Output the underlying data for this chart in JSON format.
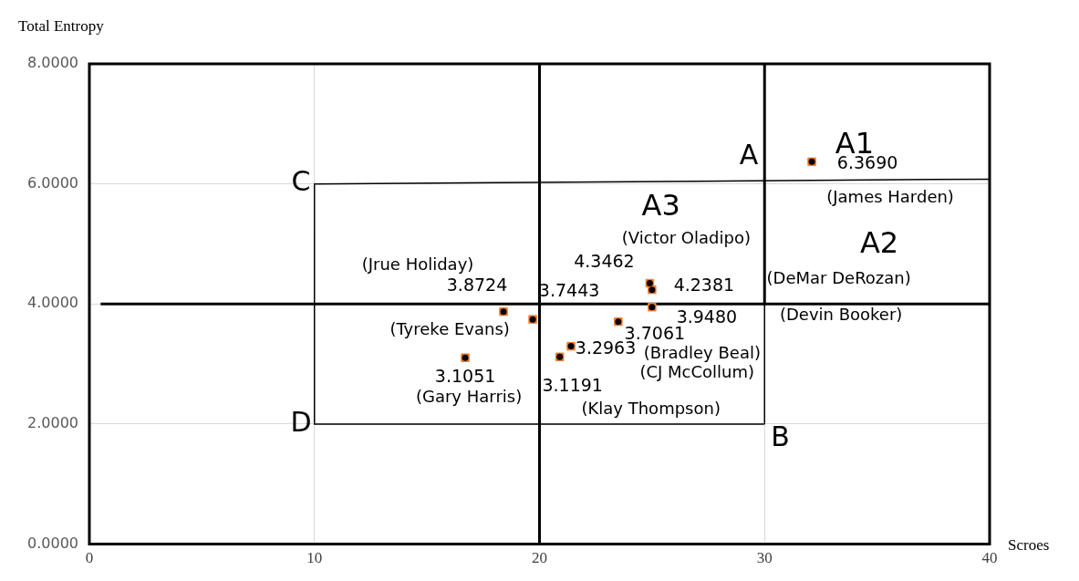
{
  "chart_data": {
    "type": "scatter",
    "xlabel": "Scroes",
    "ylabel": "Total Entropy",
    "xlim": [
      0,
      40
    ],
    "xticks": [
      0,
      10,
      20,
      30,
      40
    ],
    "ylim": [
      0,
      8
    ],
    "yticks": [
      {
        "value": 0,
        "label": "0.0000"
      },
      {
        "value": 2,
        "label": "2.0000"
      },
      {
        "value": 4,
        "label": "4.0000"
      },
      {
        "value": 6,
        "label": "6.0000"
      },
      {
        "value": 8,
        "label": "8.0000"
      }
    ],
    "grid": true,
    "series": [
      {
        "color": "#ed7d31",
        "marker": "square",
        "x": [
          32.1,
          24.9,
          25.0,
          25.0,
          23.5,
          21.4,
          20.9,
          16.7,
          18.4,
          19.7
        ],
        "values": [
          6.369,
          4.3462,
          4.2381,
          3.948,
          3.7061,
          3.2963,
          3.1191,
          3.1051,
          3.8724,
          3.7443
        ],
        "value_labels": [
          "6.3690",
          "4.3462",
          "4.2381",
          "3.9480",
          "3.7061",
          "3.2963",
          "3.1191",
          "3.1051",
          "3.8724",
          "3.7443"
        ]
      },
      {
        "type": "line",
        "color": "#000000",
        "marker": "none",
        "x": [
          0.5,
          40
        ],
        "values": [
          4,
          4
        ]
      },
      {
        "type": "line",
        "color": "#000000",
        "marker": "none",
        "x": [
          20,
          20
        ],
        "values": [
          8,
          0
        ]
      },
      {
        "type": "line",
        "color": "#000000",
        "marker": "none",
        "x": [
          30,
          30
        ],
        "values": [
          8,
          4
        ]
      },
      {
        "type": "line",
        "color": "#000000",
        "marker": "none",
        "x": [
          10,
          40
        ],
        "values": [
          6,
          6.08
        ]
      },
      {
        "type": "line",
        "color": "#000000",
        "marker": "none",
        "x": [
          10,
          10
        ],
        "values": [
          6,
          2
        ]
      },
      {
        "type": "line",
        "color": "#000000",
        "marker": "none",
        "x": [
          10,
          30
        ],
        "values": [
          2,
          2
        ]
      },
      {
        "type": "line",
        "color": "#000000",
        "marker": "none",
        "x": [
          30,
          30
        ],
        "values": [
          2,
          4
        ]
      }
    ],
    "annotations": [
      {
        "text": "(James Harden)",
        "x": 32.1,
        "y": 6.369
      },
      {
        "text": "(Victor Oladipo)",
        "x": 24.9,
        "y": 4.3462
      },
      "(DeMar DeRozan)",
      "(Devin Booker)",
      {
        "text": "(Bradley Beal)",
        "x": 23.5,
        "y": 3.7061
      },
      "(CJ McCollum)",
      {
        "text": "(Klay Thompson)",
        "x": 20.9,
        "y": 3.1191
      },
      {
        "text": "(Gary Harris)",
        "x": 16.7,
        "y": 3.1051
      },
      {
        "text": "(Tyreke Evans)",
        "x": 19.7,
        "y": 3.7443
      },
      {
        "text": "(Jrue Holiday)",
        "x": 18.4,
        "y": 3.8724
      },
      "A1",
      "A2",
      "A3",
      "A",
      "C",
      "D",
      "B"
    ]
  }
}
